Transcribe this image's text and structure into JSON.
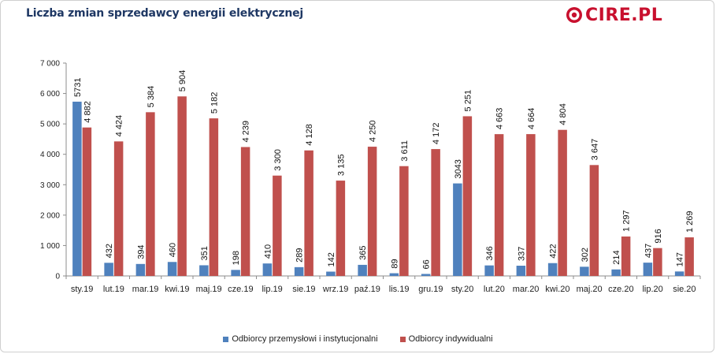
{
  "title": "Liczba zmian sprzedawcy energii elektrycznej",
  "logo_text": "CIRE.PL",
  "colors": {
    "series1": "#4f81bd",
    "series2": "#c0504d",
    "title": "#1f3864",
    "logo": "#c8102e"
  },
  "chart_data": {
    "type": "bar",
    "title": "Liczba zmian sprzedawcy energii elektrycznej",
    "xlabel": "",
    "ylabel": "",
    "ylim": [
      0,
      7000
    ],
    "yticks": [
      0,
      1000,
      2000,
      3000,
      4000,
      5000,
      6000,
      7000
    ],
    "ytick_labels": [
      "0",
      "1 000",
      "2 000",
      "3 000",
      "4 000",
      "5 000",
      "6 000",
      "7 000"
    ],
    "grid": false,
    "legend_position": "bottom",
    "categories": [
      "sty.19",
      "lut.19",
      "mar.19",
      "kwi.19",
      "maj.19",
      "cze.19",
      "lip.19",
      "sie.19",
      "wrz.19",
      "paź.19",
      "lis.19",
      "gru.19",
      "sty.20",
      "lut.20",
      "mar.20",
      "kwi.20",
      "maj.20",
      "cze.20",
      "lip.20",
      "sie.20"
    ],
    "series": [
      {
        "name": "Odbiorcy przemysłowi i instytucjonalni",
        "values": [
          5731,
          432,
          394,
          460,
          351,
          198,
          410,
          289,
          142,
          365,
          89,
          66,
          3043,
          346,
          337,
          422,
          302,
          214,
          437,
          147
        ],
        "labels": [
          "5731",
          "432",
          "394",
          "460",
          "351",
          "198",
          "410",
          "289",
          "142",
          "365",
          "89",
          "66",
          "3043",
          "346",
          "337",
          "422",
          "302",
          "214",
          "437",
          "147"
        ]
      },
      {
        "name": "Odbiorcy indywidualni",
        "values": [
          4882,
          4424,
          5384,
          5904,
          5182,
          4239,
          3300,
          4128,
          3135,
          4250,
          3611,
          4172,
          5251,
          4663,
          4664,
          4804,
          3647,
          1297,
          916,
          1269
        ],
        "labels": [
          "4 882",
          "4 424",
          "5 384",
          "5 904",
          "5 182",
          "4 239",
          "3 300",
          "4 128",
          "3 135",
          "4 250",
          "3 611",
          "4 172",
          "5 251",
          "4 663",
          "4 664",
          "4 804",
          "3 647",
          "1 297",
          "916",
          "1 269"
        ]
      }
    ]
  }
}
